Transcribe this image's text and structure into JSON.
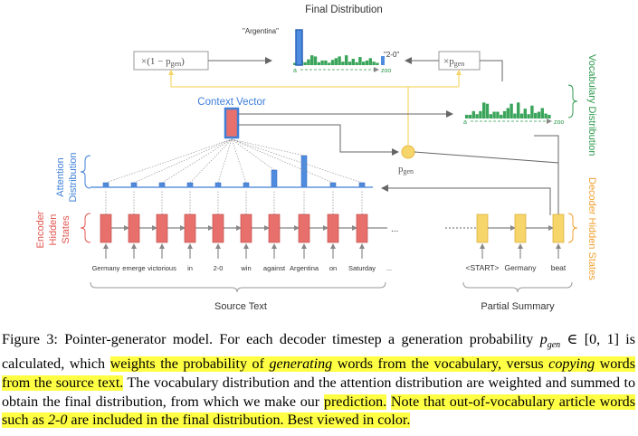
{
  "labels": {
    "final_distribution": "Final Distribution",
    "argentina_quote": "\"Argentina\"",
    "two_zero_quote": "\"2-0\"",
    "zoo": "zoo",
    "a": "a",
    "one_minus_pgen": "×(1 − p",
    "one_minus_pgen_sub": "gen",
    "one_minus_pgen_close": ")",
    "times_pgen": "×p",
    "times_pgen_sub": "gen",
    "context_vector": "Context Vector",
    "vocabulary_distribution": "Vocabulary Distribution",
    "attention_distribution_1": "Attention",
    "attention_distribution_2": "Distribution",
    "encoder_1": "Encoder",
    "encoder_2": "Hidden",
    "encoder_3": "States",
    "decoder_hidden_states": "Decoder Hidden States",
    "pgen": "p",
    "pgen_sub": "gen",
    "source_text": "Source Text",
    "partial_summary": "Partial Summary",
    "ellipsis": "..."
  },
  "source_words": [
    "Germany",
    "emerge",
    "victorious",
    "in",
    "2-0",
    "win",
    "against",
    "Argentina",
    "on",
    "Saturday",
    "..."
  ],
  "summary_words": [
    "<START>",
    "Germany",
    "beat"
  ],
  "attention_values": [
    0.05,
    0.03,
    0.03,
    0.05,
    0.04,
    0.05,
    0.45,
    0.85,
    0.06,
    0.04
  ],
  "vocab_distribution": [
    0.12,
    0.12,
    0.24,
    0.14,
    0.24,
    0.52,
    0.48,
    0.14,
    0.22,
    0.22,
    0.12,
    0.24,
    0.34,
    0.48,
    0.16,
    0.52,
    0.16,
    0.32,
    0.14,
    0.42,
    0.18,
    0.22,
    0.34,
    0.16,
    0.12
  ],
  "final_distribution_values": [
    0.08,
    0.12,
    0.18,
    0.1,
    0.2,
    0.34,
    0.3,
    0.1,
    0.16,
    0.16,
    0.08,
    0.18,
    0.24,
    0.3,
    0.12,
    0.34,
    0.12,
    0.22,
    0.1,
    0.28,
    0.12,
    0.16,
    0.24,
    0.12,
    0.08
  ],
  "colors": {
    "encoder": "#e8706c",
    "decoder": "#f6d66b",
    "attention": "#4f8ce0",
    "vocab": "#3aa55a",
    "context": "#e8706c",
    "gate": "#f6d66b",
    "arrow": "#666666",
    "blue_label": "#3f7fd8",
    "red_label": "#e0554f",
    "orange_label": "#f0a030",
    "green_label": "#2f9a4e",
    "highlight": "#ffff44"
  },
  "caption": {
    "p1": "Figure 3: Pointer-generator model. For each decoder timestep a generation probability ",
    "pgen": "p",
    "pgen_sub": "gen",
    "p1b": " ∈ [0, 1] is calculated, which ",
    "h1a": "weights the probability of ",
    "h1_generating": "generating",
    "h1b": " words from the vocabulary, versus ",
    "h1_copying": "copying",
    "h1c": " words from the source text.",
    "p2": " The vocabulary distribution and the attention distribution are weighted and summed to obtain the final distribution, from which we make our ",
    "h2": "prediction.",
    "p3": " ",
    "h3a": "Note that out-of-vocabulary article words such as ",
    "h3_2_0": "2-0",
    "h3b": " are included in the final distribution. Best viewed in color."
  }
}
